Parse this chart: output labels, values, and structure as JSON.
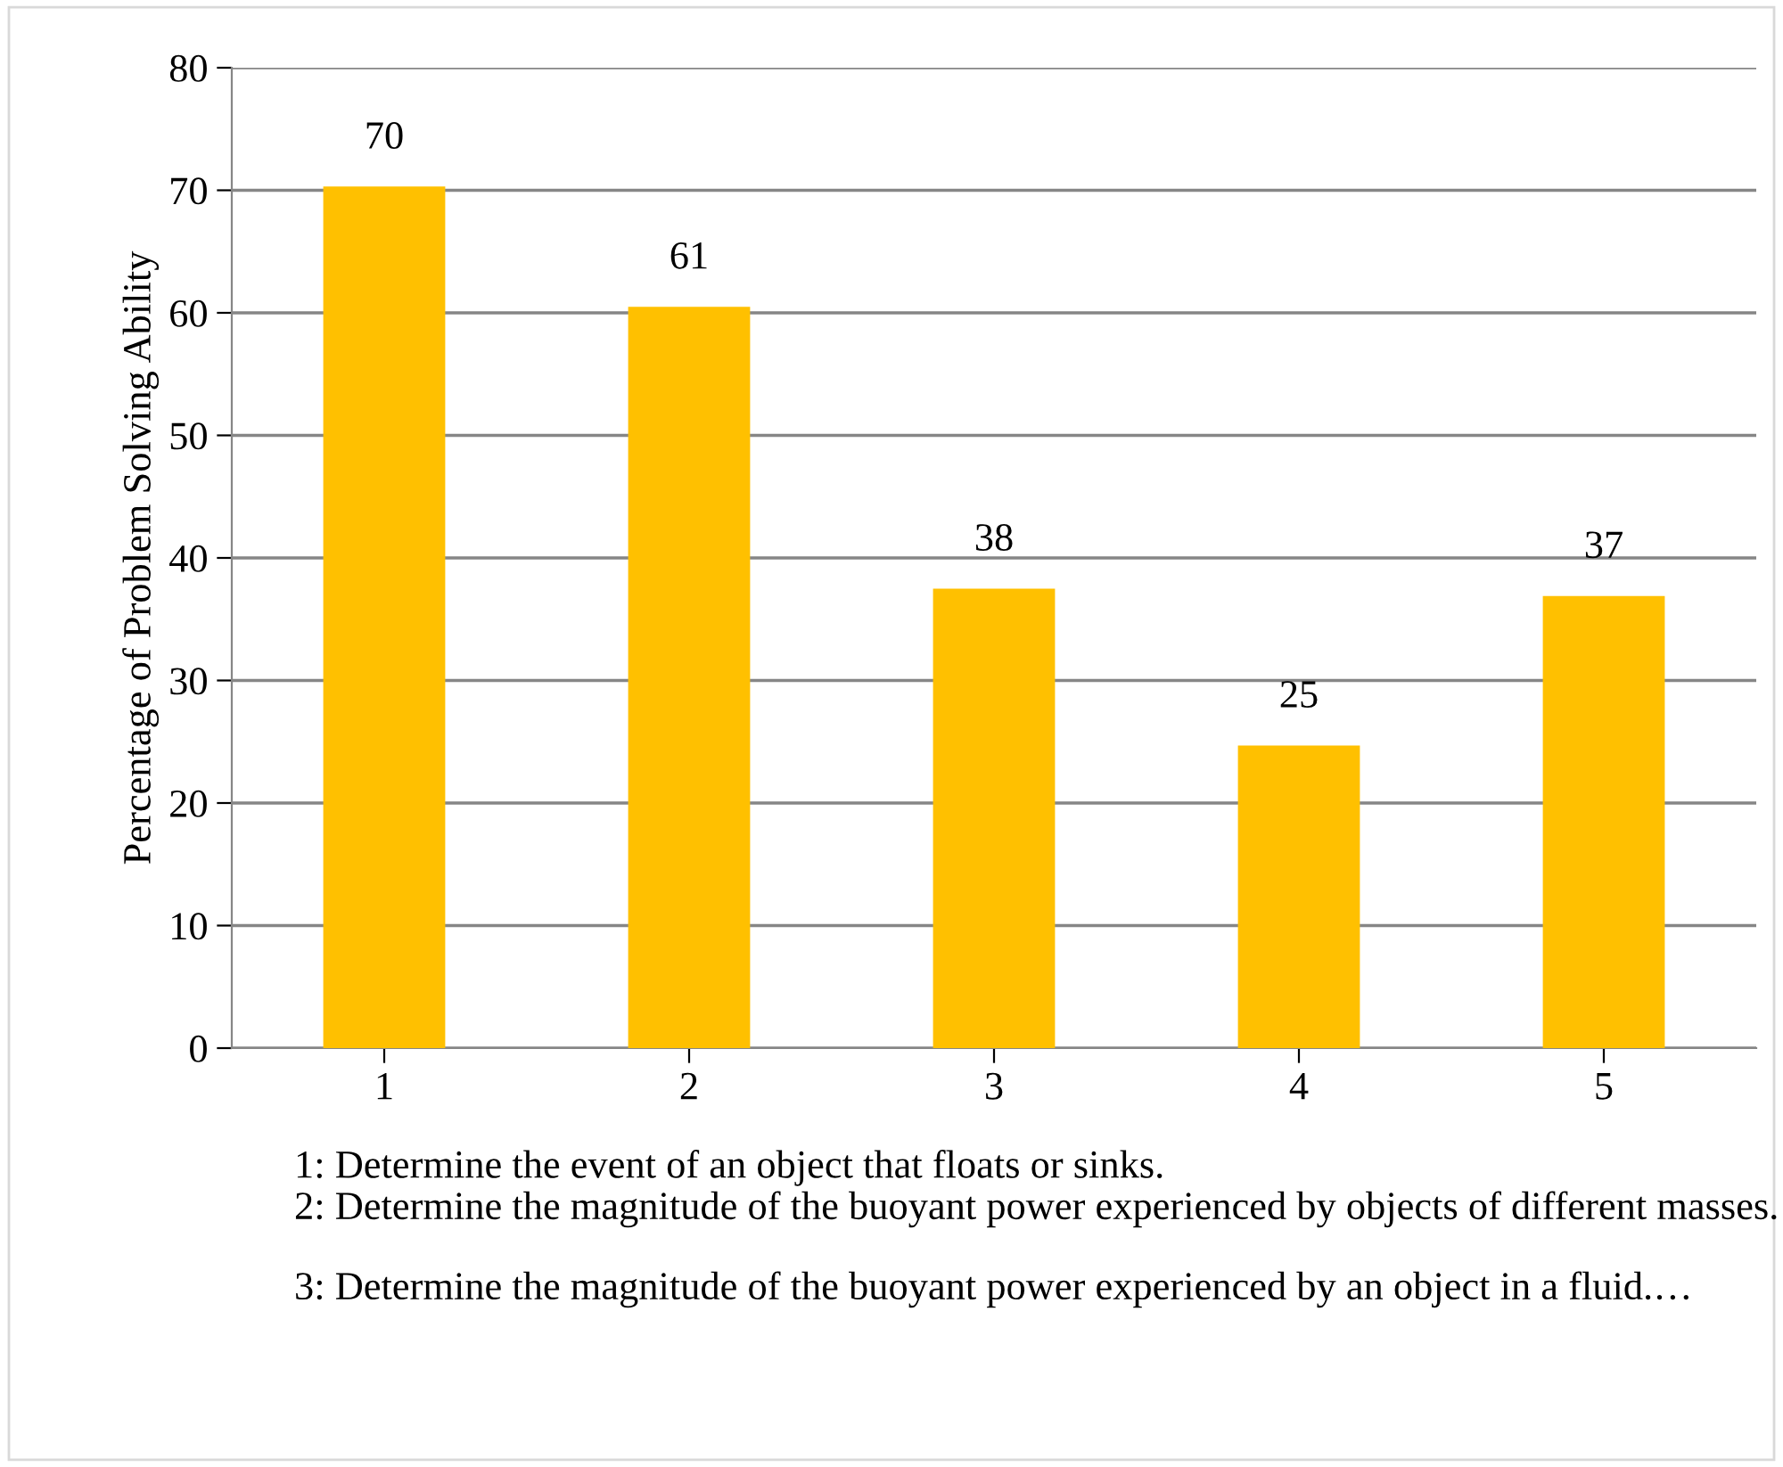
{
  "chart_data": {
    "type": "bar",
    "ylabel": "Percentage of Problem Solving Ability",
    "categories": [
      "1",
      "2",
      "3",
      "4",
      "5"
    ],
    "values": [
      70.3,
      60.5,
      37.5,
      24.7,
      36.9
    ],
    "value_labels": [
      "70",
      "61",
      "38",
      "25",
      "37"
    ],
    "color": "#ffc000",
    "ylim": [
      0,
      80
    ],
    "yticks": [
      0,
      10,
      20,
      30,
      40,
      50,
      60,
      70,
      80
    ],
    "grid": "y",
    "annotations": [
      "1: Determine the event of an object that floats or sinks.",
      "2: Determine the magnitude of the buoyant power experienced by objects of different masses.",
      "3: Determine the magnitude of the buoyant power experienced by an object in a fluid.…"
    ]
  }
}
